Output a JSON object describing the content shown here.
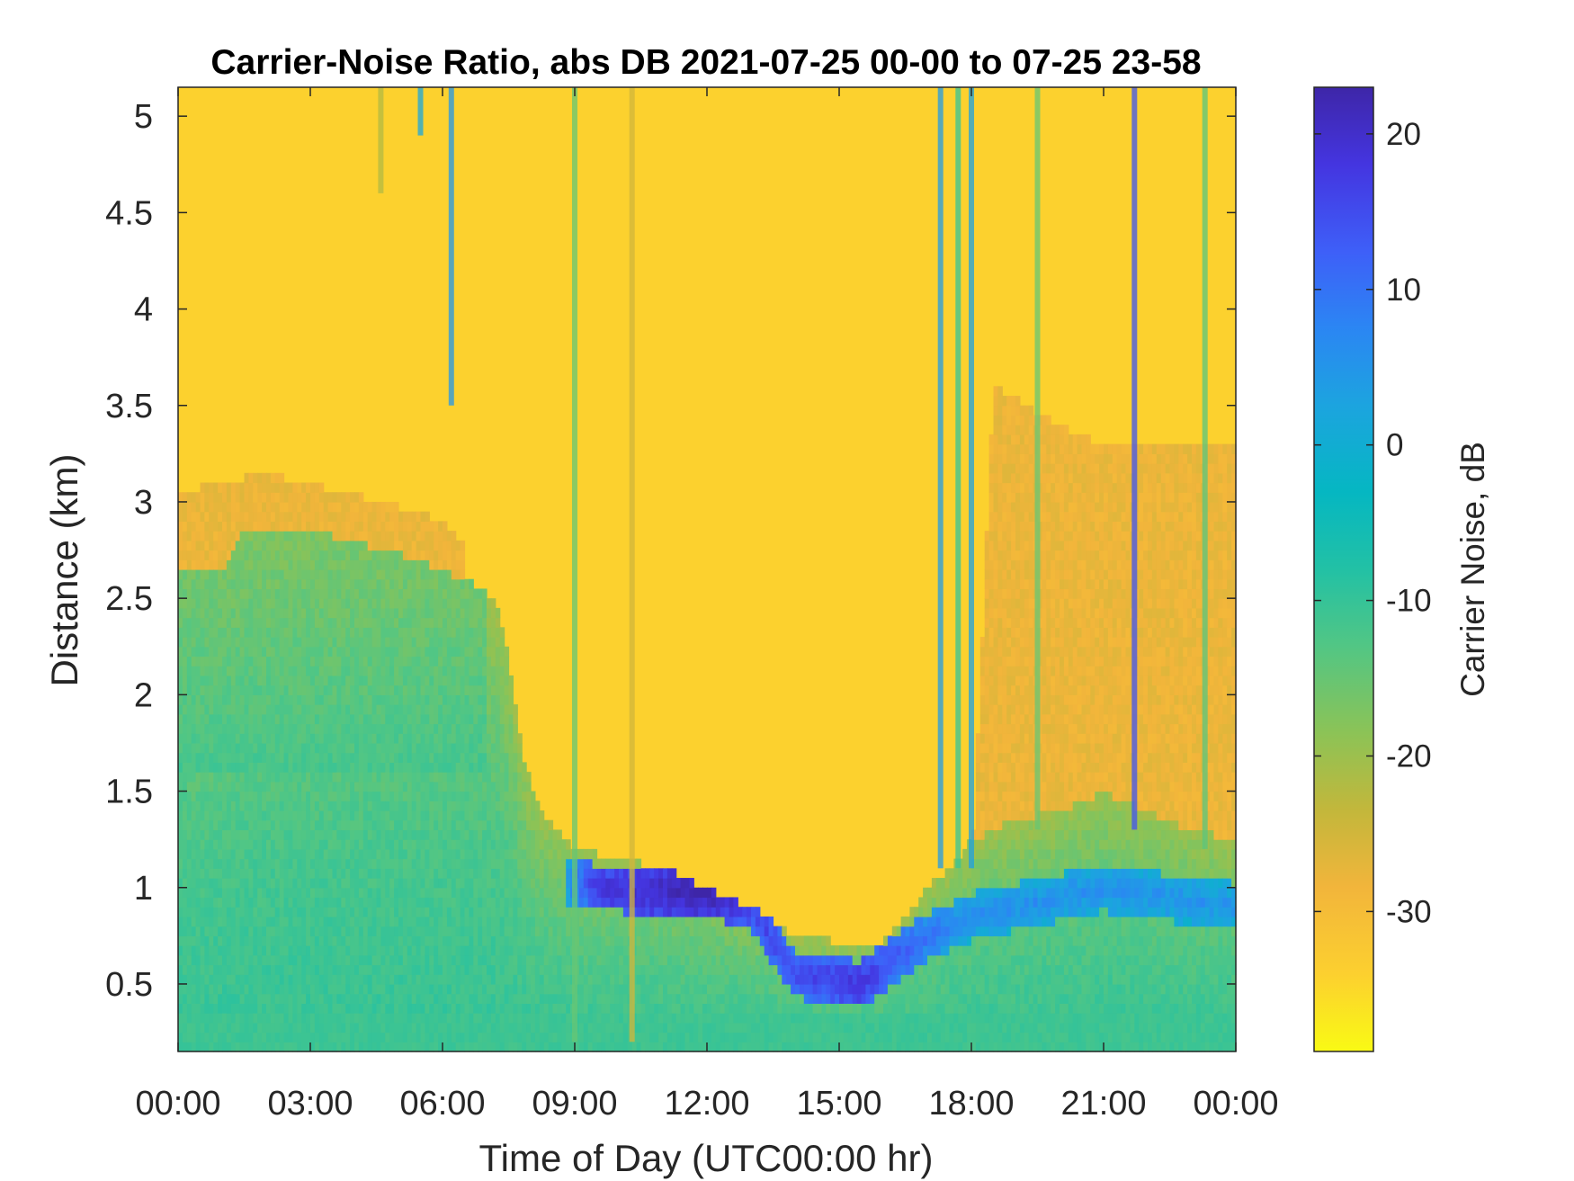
{
  "chart_data": {
    "type": "heatmap",
    "title": "Carrier-Noise Ratio, abs DB 2021-07-25 00-00 to 07-25 23-58",
    "xlabel": "Time of Day (UTC00:00 hr)",
    "ylabel": "Distance (km)",
    "colorbar_label": "Carrier Noise, dB",
    "x_ticks": [
      "00:00",
      "03:00",
      "06:00",
      "09:00",
      "12:00",
      "15:00",
      "18:00",
      "21:00",
      "00:00"
    ],
    "xlim_hours": [
      0,
      24
    ],
    "y_ticks": [
      "0.5",
      "1",
      "1.5",
      "2",
      "2.5",
      "3",
      "3.5",
      "4",
      "4.5",
      "5"
    ],
    "ylim_km": [
      0.15,
      5.15
    ],
    "colorbar_ticks": [
      "20",
      "10",
      "0",
      "-10",
      "-20",
      "-30"
    ],
    "clim_db": [
      -39,
      23
    ],
    "colormap": "parula",
    "colormap_stops": [
      "#3e26a8",
      "#4435e0",
      "#3e5ff8",
      "#2b86f3",
      "#1ca4df",
      "#05b7c2",
      "#22c1a5",
      "#52c684",
      "#8cc356",
      "#c3b73b",
      "#f2b53b",
      "#fcd02f",
      "#f9fa14"
    ],
    "clear_air_db": -34,
    "time_step_hours": 0.1,
    "distance_step_km": 0.05,
    "top_of_signal_km": [
      {
        "t": 0.0,
        "d": 2.65
      },
      {
        "t": 1.0,
        "d": 2.65
      },
      {
        "t": 1.5,
        "d": 2.85
      },
      {
        "t": 3.0,
        "d": 2.85
      },
      {
        "t": 4.0,
        "d": 2.8
      },
      {
        "t": 4.7,
        "d": 2.75
      },
      {
        "t": 5.5,
        "d": 2.7
      },
      {
        "t": 6.5,
        "d": 2.6
      },
      {
        "t": 7.2,
        "d": 2.5
      },
      {
        "t": 7.5,
        "d": 2.2
      },
      {
        "t": 7.8,
        "d": 1.7
      },
      {
        "t": 8.2,
        "d": 1.4
      },
      {
        "t": 9.0,
        "d": 1.2
      },
      {
        "t": 10.0,
        "d": 1.15
      },
      {
        "t": 11.0,
        "d": 1.1
      },
      {
        "t": 12.0,
        "d": 1.0
      },
      {
        "t": 13.0,
        "d": 0.9
      },
      {
        "t": 14.0,
        "d": 0.75
      },
      {
        "t": 15.0,
        "d": 0.72
      },
      {
        "t": 16.0,
        "d": 0.72
      },
      {
        "t": 16.5,
        "d": 0.85
      },
      {
        "t": 17.0,
        "d": 1.0
      },
      {
        "t": 17.5,
        "d": 1.1
      },
      {
        "t": 18.0,
        "d": 1.25
      },
      {
        "t": 19.0,
        "d": 1.35
      },
      {
        "t": 20.0,
        "d": 1.4
      },
      {
        "t": 21.0,
        "d": 1.5
      },
      {
        "t": 22.0,
        "d": 1.4
      },
      {
        "t": 23.0,
        "d": 1.3
      },
      {
        "t": 24.0,
        "d": 1.25
      }
    ],
    "elevated_layer_km": [
      {
        "t": 0.0,
        "d": 3.05
      },
      {
        "t": 2.0,
        "d": 3.15
      },
      {
        "t": 4.7,
        "d": 3.0
      },
      {
        "t": 6.0,
        "d": 2.9
      },
      {
        "t": 17.8,
        "d": 0
      },
      {
        "t": 18.5,
        "d": 3.6
      },
      {
        "t": 20.0,
        "d": 3.4
      },
      {
        "t": 21.0,
        "d": 3.3
      },
      {
        "t": 24.0,
        "d": 3.3
      }
    ],
    "boundary_layer": [
      {
        "t": 0.0,
        "d": 1.2,
        "v": -5
      },
      {
        "t": 3.0,
        "d": 1.3,
        "v": -5
      },
      {
        "t": 6.0,
        "d": 1.5,
        "v": -6
      },
      {
        "t": 8.0,
        "d": 1.1,
        "v": -8
      },
      {
        "t": 9.5,
        "d": 1.0,
        "v": 18
      },
      {
        "t": 12.0,
        "d": 0.98,
        "v": 23
      },
      {
        "t": 13.0,
        "d": 0.9,
        "v": 16
      },
      {
        "t": 14.0,
        "d": 0.55,
        "v": 15
      },
      {
        "t": 15.5,
        "d": 0.5,
        "v": 18
      },
      {
        "t": 17.0,
        "d": 0.75,
        "v": 10
      },
      {
        "t": 18.0,
        "d": 0.85,
        "v": 6
      },
      {
        "t": 21.0,
        "d": 1.0,
        "v": 6
      },
      {
        "t": 24.0,
        "d": 0.9,
        "v": 5
      }
    ],
    "surface_db": -10,
    "vertical_streaks": [
      {
        "t": 4.6,
        "d_min": 4.6,
        "v": -22
      },
      {
        "t": 5.5,
        "d_min": 4.9,
        "v": 2
      },
      {
        "t": 6.2,
        "d_min": 3.5,
        "v": 5
      },
      {
        "t": 9.0,
        "d_min": 0.2,
        "v": -15
      },
      {
        "t": 10.3,
        "d_min": 0.2,
        "v": -25
      },
      {
        "t": 17.3,
        "d_min": 1.1,
        "v": 4
      },
      {
        "t": 17.7,
        "d_min": 1.1,
        "v": -10
      },
      {
        "t": 18.0,
        "d_min": 1.1,
        "v": 3
      },
      {
        "t": 19.5,
        "d_min": 1.3,
        "v": -15
      },
      {
        "t": 21.7,
        "d_min": 1.3,
        "v": 14
      },
      {
        "t": 23.3,
        "d_min": 1.2,
        "v": -14
      }
    ]
  }
}
